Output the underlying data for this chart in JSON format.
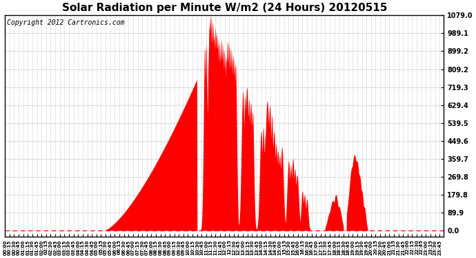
{
  "title": "Solar Radiation per Minute W/m2 (24 Hours) 20120515",
  "copyright_text": "Copyright 2012 Cartronics.com",
  "yticks": [
    0.0,
    89.9,
    179.8,
    269.8,
    359.7,
    449.6,
    539.5,
    629.4,
    719.3,
    809.2,
    899.2,
    989.1,
    1079.0
  ],
  "ymax": 1079.0,
  "ymin": 0.0,
  "fill_color": "#FF0000",
  "bg_color": "#FFFFFF",
  "grid_color": "#C0C0C0",
  "dashed_line_color": "#FF0000",
  "title_fontsize": 11,
  "copyright_fontsize": 7
}
